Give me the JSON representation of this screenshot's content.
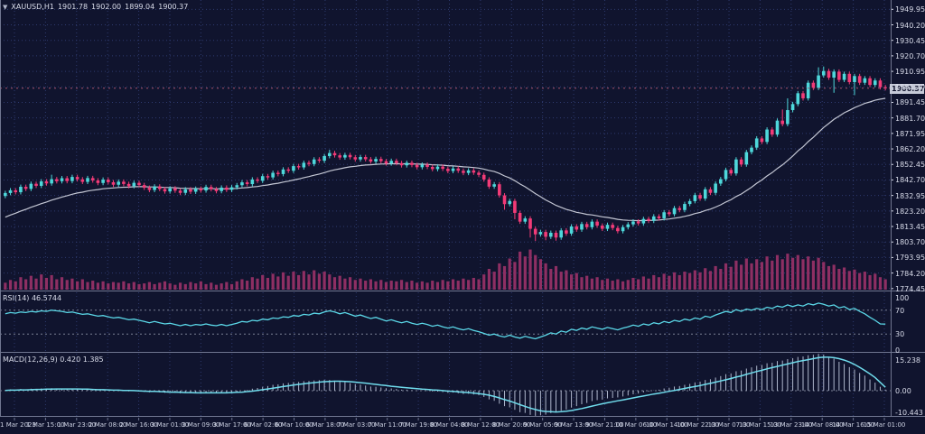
{
  "window": {
    "title_symbol": "XAUUSD,H1",
    "dropdown_glyph": "▼"
  },
  "colors": {
    "background": "#10142e",
    "grid": "#2e3a6e",
    "separator": "#707690",
    "bull": "#4ed8db",
    "bear": "#f23b77",
    "ma_line": "#c4c7d4",
    "volume": "#8e2f63",
    "rsi_line": "#5bd8e8",
    "macd_hist": "#aeb6cc",
    "macd_signal": "#70dcec",
    "axis_text": "#d9dcea",
    "level_line": "#7a8094",
    "bid_line": "#a9546f",
    "badge_bg": "#c6cad8",
    "badge_text": "#11152e"
  },
  "chart_data": {
    "type": "candlestick",
    "symbol": "XAUUSD",
    "timeframe": "H1",
    "ohlc_display": {
      "open": "1901.78",
      "high": "1902.00",
      "low": "1899.04",
      "close": "1900.37"
    },
    "price_axis": {
      "labels": [
        "1949.95",
        "1940.20",
        "1930.45",
        "1920.70",
        "1910.95",
        "1901.20",
        "1891.45",
        "1881.70",
        "1871.95",
        "1862.20",
        "1852.45",
        "1842.70",
        "1832.95",
        "1823.20",
        "1813.45",
        "1803.70",
        "1793.95",
        "1784.20",
        "1774.45"
      ],
      "min": 1773.2,
      "max": 1955.8,
      "current": "1900.37",
      "current_value": 1900.37
    },
    "time_axis": {
      "labels": [
        "1 Mar 2023",
        "1 Mar 15:00",
        "1 Mar 23:00",
        "2 Mar 08:00",
        "2 Mar 16:00",
        "3 Mar 01:00",
        "3 Mar 09:00",
        "3 Mar 17:00",
        "6 Mar 02:00",
        "6 Mar 10:00",
        "6 Mar 18:00",
        "7 Mar 03:00",
        "7 Mar 11:00",
        "7 Mar 19:00",
        "8 Mar 04:00",
        "8 Mar 12:00",
        "8 Mar 20:00",
        "9 Mar 05:00",
        "9 Mar 13:00",
        "9 Mar 21:00",
        "10 Mar 06:00",
        "10 Mar 14:00",
        "10 Mar 22:00",
        "13 Mar 07:00",
        "13 Mar 15:00",
        "13 Mar 23:00",
        "14 Mar 08:00",
        "14 Mar 16:00",
        "15 Mar 01:00"
      ]
    },
    "candles": {
      "first_open": 1832.6,
      "wick": 1.4,
      "closes": [
        1834.5,
        1836.2,
        1835.0,
        1838.4,
        1837.1,
        1840.3,
        1839.0,
        1841.8,
        1840.5,
        1843.2,
        1841.9,
        1843.8,
        1842.0,
        1844.6,
        1843.1,
        1841.5,
        1843.9,
        1842.4,
        1840.8,
        1842.9,
        1841.3,
        1839.7,
        1841.6,
        1840.2,
        1838.8,
        1840.9,
        1839.5,
        1837.8,
        1836.4,
        1838.6,
        1837.0,
        1835.5,
        1837.4,
        1836.0,
        1834.6,
        1836.8,
        1835.3,
        1837.2,
        1836.1,
        1838.3,
        1836.9,
        1835.7,
        1837.9,
        1836.5,
        1838.1,
        1839.4,
        1841.2,
        1840.1,
        1843.0,
        1842.2,
        1845.1,
        1844.3,
        1847.2,
        1846.4,
        1849.3,
        1848.5,
        1851.4,
        1850.6,
        1853.5,
        1852.7,
        1855.6,
        1854.8,
        1857.7,
        1859.6,
        1858.2,
        1856.8,
        1858.4,
        1857.0,
        1855.6,
        1857.1,
        1855.7,
        1854.3,
        1855.9,
        1854.5,
        1853.1,
        1854.7,
        1853.3,
        1851.9,
        1853.5,
        1852.1,
        1850.7,
        1852.3,
        1850.9,
        1849.5,
        1851.1,
        1849.7,
        1848.3,
        1849.9,
        1848.5,
        1847.1,
        1848.7,
        1847.3,
        1845.9,
        1843.0,
        1838.5,
        1840.0,
        1833.0,
        1827.5,
        1829.5,
        1822.0,
        1816.5,
        1818.5,
        1812.0,
        1808.5,
        1810.0,
        1807.0,
        1809.5,
        1806.5,
        1811.0,
        1809.0,
        1813.5,
        1811.5,
        1815.0,
        1813.0,
        1816.5,
        1814.0,
        1812.0,
        1814.5,
        1812.5,
        1810.5,
        1813.0,
        1814.8,
        1816.6,
        1815.4,
        1818.2,
        1817.0,
        1819.8,
        1818.6,
        1822.4,
        1821.2,
        1825.0,
        1823.8,
        1827.6,
        1829.4,
        1833.2,
        1831.0,
        1836.8,
        1834.6,
        1840.4,
        1843.2,
        1849.0,
        1846.8,
        1855.6,
        1852.4,
        1860.2,
        1863.0,
        1868.8,
        1866.6,
        1874.4,
        1871.2,
        1880.0,
        1877.8,
        1886.6,
        1890.4,
        1897.2,
        1894.0,
        1903.8,
        1900.6,
        1908.4,
        1911.2,
        1907.0,
        1910.8,
        1905.6,
        1909.4,
        1904.2,
        1908.0,
        1903.8,
        1906.6,
        1902.4,
        1905.2,
        1901.0,
        1900.37
      ],
      "wick_overrides": {
        "9": {
          "h": 1846.0
        },
        "63": {
          "h": 1861.6
        },
        "97": {
          "l": 1824.0
        },
        "99": {
          "l": 1818.0
        },
        "102": {
          "l": 1806.5
        },
        "103": {
          "l": 1804.3
        },
        "105": {
          "l": 1804.8
        },
        "107": {
          "l": 1804.5
        },
        "151": {
          "h": 1887.0
        },
        "152": {
          "h": 1894.0
        },
        "158": {
          "h": 1913.5
        },
        "159": {
          "h": 1914.0
        },
        "161": {
          "l": 1897.5
        },
        "165": {
          "l": 1896.0
        }
      }
    },
    "volume": {
      "max_scale": 60,
      "values": [
        10,
        14,
        12,
        18,
        15,
        20,
        16,
        22,
        17,
        21,
        15,
        18,
        14,
        16,
        12,
        15,
        11,
        13,
        10,
        12,
        9,
        11,
        10,
        12,
        9,
        11,
        8,
        9,
        11,
        8,
        10,
        12,
        9,
        7,
        10,
        8,
        11,
        9,
        12,
        8,
        10,
        7,
        9,
        11,
        8,
        12,
        15,
        13,
        18,
        16,
        21,
        17,
        23,
        19,
        25,
        20,
        26,
        21,
        27,
        22,
        28,
        23,
        26,
        22,
        18,
        20,
        16,
        18,
        14,
        16,
        13,
        15,
        12,
        14,
        11,
        13,
        12,
        14,
        11,
        13,
        10,
        12,
        10,
        13,
        11,
        14,
        12,
        15,
        13,
        16,
        14,
        17,
        15,
        22,
        30,
        26,
        38,
        34,
        45,
        40,
        55,
        48,
        58,
        50,
        44,
        38,
        30,
        34,
        26,
        28,
        22,
        24,
        18,
        20,
        16,
        18,
        14,
        16,
        13,
        15,
        12,
        14,
        17,
        15,
        19,
        16,
        21,
        18,
        23,
        20,
        25,
        21,
        26,
        24,
        28,
        25,
        31,
        27,
        34,
        30,
        38,
        33,
        42,
        36,
        45,
        38,
        44,
        40,
        48,
        42,
        50,
        44,
        52,
        46,
        50,
        44,
        48,
        42,
        46,
        40,
        34,
        36,
        30,
        32,
        27,
        29,
        24,
        26,
        21,
        23,
        18,
        15
      ]
    },
    "ma": {
      "period": 24,
      "seed": 1818
    },
    "rsi": {
      "label": "RSI(14) 46.5744",
      "period": 14,
      "axis_labels": [
        "100",
        "70",
        "30",
        "0"
      ],
      "levels": [
        70,
        30
      ],
      "values": [
        64,
        66,
        65,
        67,
        66,
        68,
        67,
        69,
        68,
        70,
        69,
        68,
        66,
        67,
        65,
        63,
        64,
        62,
        60,
        61,
        59,
        57,
        58,
        56,
        54,
        55,
        53,
        51,
        49,
        51,
        49,
        47,
        48,
        46,
        44,
        46,
        44,
        46,
        45,
        47,
        45,
        44,
        46,
        44,
        46,
        48,
        51,
        50,
        53,
        52,
        55,
        54,
        57,
        56,
        59,
        58,
        61,
        60,
        63,
        62,
        65,
        64,
        67,
        69,
        67,
        64,
        66,
        63,
        60,
        62,
        59,
        56,
        58,
        55,
        52,
        54,
        51,
        49,
        51,
        48,
        46,
        48,
        46,
        43,
        45,
        42,
        40,
        42,
        39,
        37,
        39,
        36,
        34,
        31,
        28,
        30,
        27,
        25,
        28,
        25,
        23,
        26,
        24,
        22,
        25,
        28,
        32,
        30,
        35,
        33,
        38,
        36,
        40,
        38,
        42,
        40,
        38,
        41,
        39,
        37,
        40,
        42,
        45,
        43,
        47,
        45,
        49,
        47,
        51,
        49,
        53,
        51,
        55,
        53,
        57,
        55,
        60,
        58,
        62,
        65,
        68,
        66,
        71,
        68,
        72,
        70,
        73,
        71,
        75,
        73,
        77,
        75,
        79,
        76,
        79,
        77,
        81,
        79,
        82,
        80,
        77,
        79,
        74,
        76,
        71,
        73,
        68,
        64,
        58,
        53,
        47,
        46.6
      ]
    },
    "macd": {
      "label": "MACD(12,26,9) 0.420 1.385",
      "axis_labels": [
        "15.238",
        "0.00",
        "-10.443"
      ],
      "max": 15.238,
      "min": -10.443,
      "main": [
        0.2,
        0.5,
        0.3,
        0.7,
        0.4,
        0.8,
        0.5,
        0.9,
        0.6,
        1.0,
        0.7,
        0.9,
        0.6,
        0.8,
        0.5,
        0.3,
        0.5,
        0.3,
        0.1,
        0.3,
        0.1,
        -0.1,
        0.1,
        -0.1,
        -0.3,
        -0.1,
        -0.3,
        -0.5,
        -0.7,
        -0.5,
        -0.7,
        -0.9,
        -0.7,
        -0.9,
        -1.1,
        -0.9,
        -1.1,
        -0.9,
        -1.0,
        -0.8,
        -0.9,
        -1.0,
        -0.8,
        -0.9,
        -0.7,
        -0.4,
        0.0,
        0.3,
        0.8,
        1.1,
        1.6,
        1.9,
        2.4,
        2.6,
        3.0,
        3.2,
        3.5,
        3.6,
        3.9,
        4.0,
        4.2,
        4.3,
        4.5,
        4.4,
        4.1,
        3.7,
        3.5,
        3.1,
        2.7,
        2.5,
        2.1,
        1.7,
        1.6,
        1.3,
        1.0,
        0.9,
        0.7,
        0.4,
        0.4,
        0.2,
        0.0,
        0.1,
        -0.1,
        -0.4,
        -0.4,
        -0.6,
        -0.9,
        -0.8,
        -1.1,
        -1.4,
        -1.3,
        -1.6,
        -1.9,
        -2.6,
        -3.6,
        -4.2,
        -5.4,
        -6.4,
        -6.9,
        -7.9,
        -8.9,
        -9.2,
        -10.0,
        -10.4,
        -10.2,
        -9.9,
        -9.3,
        -9.0,
        -8.3,
        -7.8,
        -7.0,
        -6.4,
        -5.6,
        -5.1,
        -4.3,
        -3.9,
        -3.7,
        -3.2,
        -3.0,
        -2.8,
        -2.4,
        -2.0,
        -1.5,
        -1.2,
        -0.7,
        -0.4,
        0.1,
        0.4,
        0.9,
        1.2,
        1.7,
        1.9,
        2.4,
        2.8,
        3.4,
        3.7,
        4.4,
        4.7,
        5.4,
        6.0,
        6.8,
        7.1,
        8.0,
        8.3,
        9.1,
        9.6,
        10.3,
        10.6,
        11.3,
        11.5,
        12.2,
        12.4,
        13.0,
        13.4,
        13.9,
        14.1,
        14.6,
        14.8,
        15.2,
        14.9,
        13.9,
        13.2,
        11.9,
        11.0,
        9.7,
        8.7,
        7.3,
        6.2,
        4.6,
        3.3,
        1.6,
        0.42
      ],
      "signal": [
        0.1,
        0.2,
        0.2,
        0.3,
        0.3,
        0.4,
        0.5,
        0.5,
        0.6,
        0.6,
        0.7,
        0.7,
        0.7,
        0.7,
        0.7,
        0.6,
        0.6,
        0.5,
        0.4,
        0.4,
        0.3,
        0.2,
        0.2,
        0.1,
        0.1,
        0.0,
        -0.1,
        -0.2,
        -0.3,
        -0.3,
        -0.4,
        -0.5,
        -0.6,
        -0.6,
        -0.7,
        -0.8,
        -0.8,
        -0.9,
        -0.9,
        -0.9,
        -0.9,
        -0.9,
        -0.9,
        -0.9,
        -0.8,
        -0.7,
        -0.6,
        -0.4,
        -0.2,
        0.1,
        0.4,
        0.7,
        1.0,
        1.3,
        1.7,
        2.0,
        2.3,
        2.6,
        2.8,
        3.1,
        3.3,
        3.5,
        3.7,
        3.8,
        3.9,
        3.9,
        3.8,
        3.7,
        3.5,
        3.3,
        3.1,
        2.8,
        2.6,
        2.3,
        2.1,
        1.8,
        1.6,
        1.4,
        1.2,
        1.0,
        0.8,
        0.6,
        0.5,
        0.3,
        0.2,
        0.0,
        -0.2,
        -0.3,
        -0.5,
        -0.7,
        -0.8,
        -1.0,
        -1.2,
        -1.5,
        -1.9,
        -2.4,
        -3.0,
        -3.7,
        -4.3,
        -5.0,
        -5.8,
        -6.5,
        -7.2,
        -7.8,
        -8.3,
        -8.6,
        -8.7,
        -8.8,
        -8.7,
        -8.5,
        -8.2,
        -7.8,
        -7.4,
        -6.9,
        -6.4,
        -5.9,
        -5.4,
        -5.0,
        -4.6,
        -4.2,
        -3.8,
        -3.4,
        -3.0,
        -2.6,
        -2.2,
        -1.8,
        -1.4,
        -1.1,
        -0.7,
        -0.3,
        0.1,
        0.5,
        0.9,
        1.3,
        1.7,
        2.1,
        2.6,
        3.0,
        3.5,
        4.0,
        4.5,
        5.0,
        5.6,
        6.1,
        6.7,
        7.3,
        7.9,
        8.4,
        9.0,
        9.5,
        10.0,
        10.5,
        11.0,
        11.5,
        12.0,
        12.4,
        12.8,
        13.2,
        13.6,
        13.8,
        13.8,
        13.6,
        13.2,
        12.6,
        11.8,
        10.8,
        9.6,
        8.3,
        6.9,
        5.4,
        3.4,
        1.385
      ]
    }
  }
}
